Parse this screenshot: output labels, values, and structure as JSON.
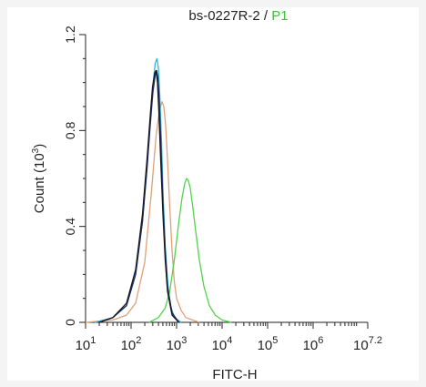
{
  "colors": {
    "black": "#1a1a1a",
    "navy": "#1f2c70",
    "cyan": "#35b5d6",
    "orange": "#e0a178",
    "green": "#53d24e",
    "p1_label": "#3bc43b",
    "axis": "#222222"
  },
  "chart_data": {
    "type": "line",
    "title": {
      "prefix": "bs-0227R-2 / ",
      "gate": "P1"
    },
    "xlabel": "FITC-H",
    "ylabel": "Count (10",
    "ylabel_sup": "3",
    "ylabel_close": ")",
    "xscale": "log",
    "xlim": [
      1,
      7.2
    ],
    "ylim": [
      0,
      1.2
    ],
    "x_ticks": [
      {
        "pos": 1,
        "base": "10",
        "exp": "1"
      },
      {
        "pos": 2,
        "base": "10",
        "exp": "2"
      },
      {
        "pos": 3,
        "base": "10",
        "exp": "3"
      },
      {
        "pos": 4,
        "base": "10",
        "exp": "4"
      },
      {
        "pos": 5,
        "base": "10",
        "exp": "5"
      },
      {
        "pos": 6,
        "base": "10",
        "exp": "6"
      },
      {
        "pos": 7.2,
        "base": "10",
        "exp": "7.2"
      }
    ],
    "y_ticks": [
      {
        "value": 0,
        "label": "0"
      },
      {
        "value": 0.4,
        "label": "0.4"
      },
      {
        "value": 0.8,
        "label": "0.8"
      },
      {
        "value": 1.2,
        "label": "1.2"
      }
    ],
    "grid": false,
    "series": [
      {
        "color": "#e0a178",
        "x": [
          1.0,
          1.6,
          1.9,
          2.1,
          2.3,
          2.45,
          2.55,
          2.62,
          2.68,
          2.72,
          2.76,
          2.8,
          2.85,
          2.9,
          2.95,
          3.0,
          3.1,
          3.2,
          3.35,
          3.5
        ],
        "y": [
          0,
          0.01,
          0.03,
          0.08,
          0.25,
          0.55,
          0.78,
          0.88,
          0.92,
          0.9,
          0.82,
          0.68,
          0.48,
          0.3,
          0.17,
          0.1,
          0.05,
          0.02,
          0.01,
          0
        ]
      },
      {
        "color": "#53d24e",
        "x": [
          2.4,
          2.6,
          2.75,
          2.85,
          2.95,
          3.05,
          3.12,
          3.18,
          3.22,
          3.26,
          3.3,
          3.35,
          3.42,
          3.5,
          3.6,
          3.72,
          3.85,
          4.0,
          4.2
        ],
        "y": [
          0,
          0.02,
          0.06,
          0.13,
          0.26,
          0.42,
          0.52,
          0.58,
          0.6,
          0.59,
          0.56,
          0.49,
          0.38,
          0.26,
          0.15,
          0.07,
          0.03,
          0.01,
          0
        ]
      },
      {
        "color": "#35b5d6",
        "x": [
          1.2,
          1.6,
          1.9,
          2.1,
          2.25,
          2.35,
          2.42,
          2.48,
          2.53,
          2.57,
          2.6,
          2.63,
          2.67,
          2.7,
          2.75,
          2.8,
          2.85,
          2.95,
          3.1
        ],
        "y": [
          0,
          0.02,
          0.07,
          0.2,
          0.42,
          0.65,
          0.85,
          0.99,
          1.08,
          1.1,
          1.06,
          0.95,
          0.75,
          0.55,
          0.32,
          0.18,
          0.08,
          0.02,
          0
        ]
      },
      {
        "color": "#1f2c70",
        "x": [
          1.3,
          1.6,
          1.9,
          2.1,
          2.25,
          2.35,
          2.42,
          2.48,
          2.53,
          2.56,
          2.59,
          2.62,
          2.66,
          2.7,
          2.75,
          2.8,
          2.9,
          3.05
        ],
        "y": [
          0,
          0.02,
          0.07,
          0.2,
          0.42,
          0.64,
          0.82,
          0.96,
          1.03,
          1.05,
          1.02,
          0.92,
          0.72,
          0.5,
          0.3,
          0.15,
          0.04,
          0
        ]
      },
      {
        "color": "#1a1a1a",
        "x": [
          1.3,
          1.6,
          1.9,
          2.1,
          2.25,
          2.35,
          2.42,
          2.47,
          2.52,
          2.55,
          2.58,
          2.61,
          2.65,
          2.7,
          2.75,
          2.8,
          2.9,
          3.05
        ],
        "y": [
          0,
          0.02,
          0.08,
          0.22,
          0.45,
          0.68,
          0.86,
          0.98,
          1.04,
          1.05,
          1.0,
          0.88,
          0.68,
          0.45,
          0.26,
          0.13,
          0.03,
          0
        ]
      }
    ]
  }
}
